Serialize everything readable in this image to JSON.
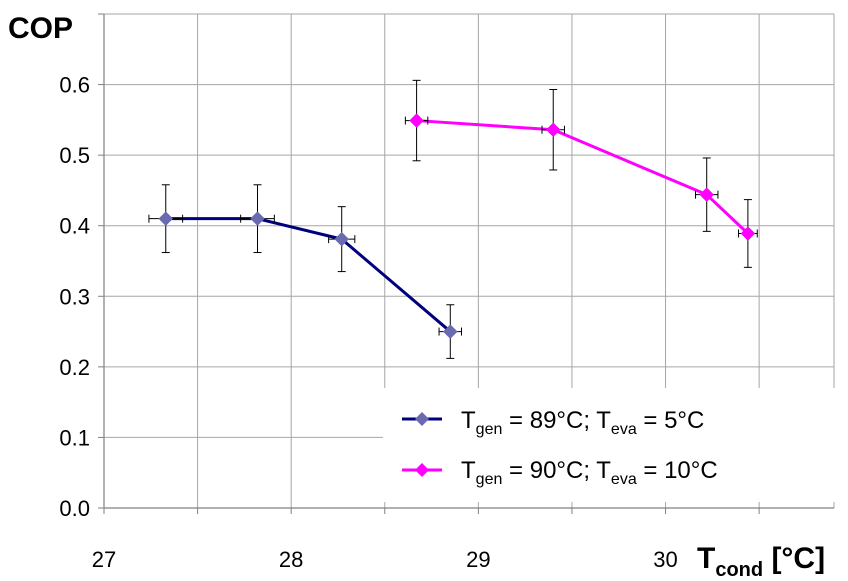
{
  "chart_data": {
    "type": "line",
    "ylabel": "COP",
    "xlabel": {
      "main": "T",
      "sub": "cond",
      "unit": " [°C]"
    },
    "xlim": [
      27,
      30.9
    ],
    "ylim": [
      0,
      0.7
    ],
    "x_ticks": [
      27,
      27.5,
      28,
      28.5,
      29,
      29.5,
      30,
      30.5
    ],
    "x_tick_labels": [
      "27",
      "",
      "28",
      "",
      "29",
      "",
      "30",
      ""
    ],
    "y_ticks": [
      0,
      0.1,
      0.2,
      0.3,
      0.4,
      0.5,
      0.6,
      0.7
    ],
    "y_tick_labels": [
      "0.0",
      "0.1",
      "0.2",
      "0.3",
      "0.4",
      "0.5",
      "0.6",
      ""
    ],
    "grid": true,
    "legend_position": "bottom-right",
    "series": [
      {
        "color": "#00007f",
        "marker_color": "#6a6ab0",
        "legend": {
          "a": "T",
          "a_sub": "gen",
          "b": " = 89°C; T",
          "b_sub": "eva",
          "c": " = 5°C"
        },
        "points": [
          {
            "x": 27.33,
            "y": 0.41,
            "xerr": 0.09,
            "yerr": 0.048
          },
          {
            "x": 27.82,
            "y": 0.41,
            "xerr": 0.09,
            "yerr": 0.048
          },
          {
            "x": 28.27,
            "y": 0.381,
            "xerr": 0.07,
            "yerr": 0.046
          },
          {
            "x": 28.85,
            "y": 0.25,
            "xerr": 0.06,
            "yerr": 0.038
          }
        ]
      },
      {
        "color": "#ff00ff",
        "marker_color": "#ff00ff",
        "legend": {
          "a": "T",
          "a_sub": "gen",
          "b": " = 90°C; T",
          "b_sub": "eva",
          "c": " = 10°C"
        },
        "points": [
          {
            "x": 28.67,
            "y": 0.549,
            "xerr": 0.06,
            "yerr": 0.057
          },
          {
            "x": 29.4,
            "y": 0.536,
            "xerr": 0.06,
            "yerr": 0.057
          },
          {
            "x": 30.22,
            "y": 0.444,
            "xerr": 0.06,
            "yerr": 0.052
          },
          {
            "x": 30.44,
            "y": 0.389,
            "xerr": 0.05,
            "yerr": 0.048
          }
        ]
      }
    ]
  }
}
